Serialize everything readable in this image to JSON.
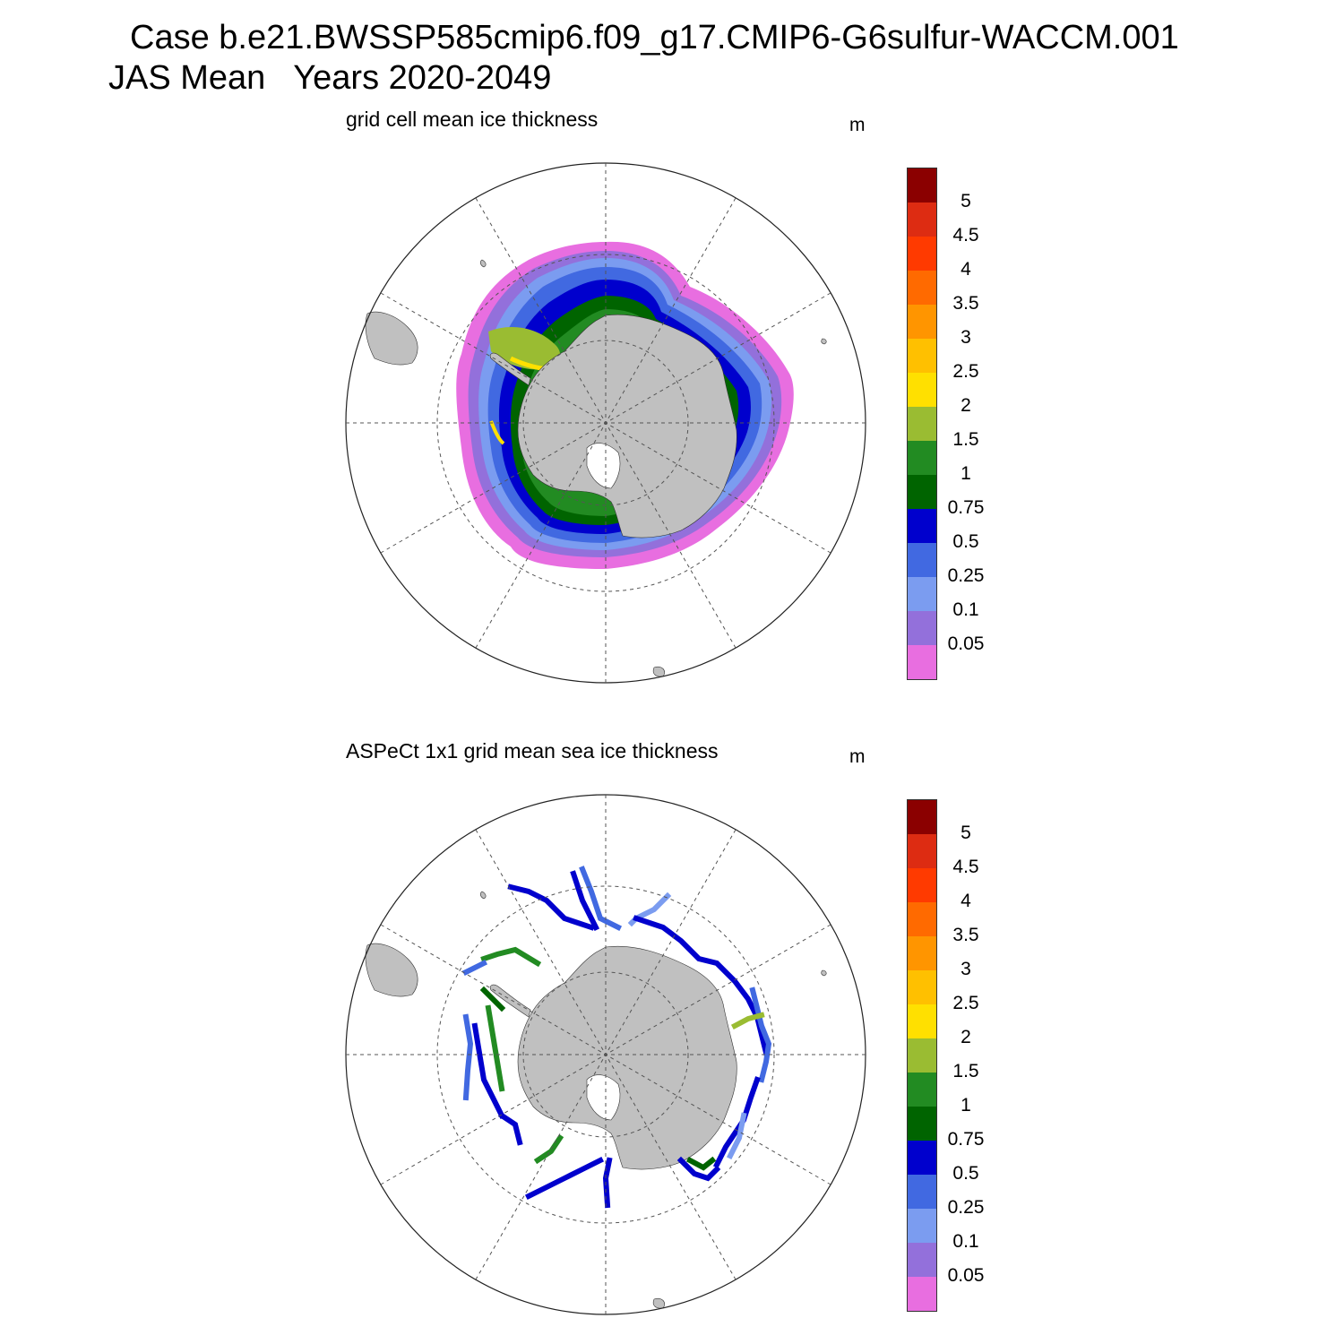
{
  "figure": {
    "title_line1": "Case b.e21.BWSSP585cmip6.f09_g17.CMIP6-G6sulfur-WACCM.001",
    "title_line2": "JAS Mean   Years 2020-2049"
  },
  "panels": [
    {
      "title": "grid cell mean ice thickness",
      "unit": "m"
    },
    {
      "title": "ASPeCt 1x1 grid mean sea ice thickness",
      "unit": "m"
    }
  ],
  "colorbar": {
    "labels": [
      "5",
      "4.5",
      "4",
      "3.5",
      "3",
      "2.5",
      "2",
      "1.5",
      "1",
      "0.75",
      "0.5",
      "0.25",
      "0.1",
      "0.05"
    ],
    "colors_top_to_bottom": [
      "#8b0000",
      "#dd2c12",
      "#ff3a00",
      "#ff6a00",
      "#ff9500",
      "#ffc000",
      "#ffe000",
      "#9abc32",
      "#228b22",
      "#006400",
      "#0000cd",
      "#4169e1",
      "#7b9cf0",
      "#9370db",
      "#e86ee0"
    ]
  },
  "colors": {
    "land": "#c0c0c0",
    "grid": "#555555"
  }
}
